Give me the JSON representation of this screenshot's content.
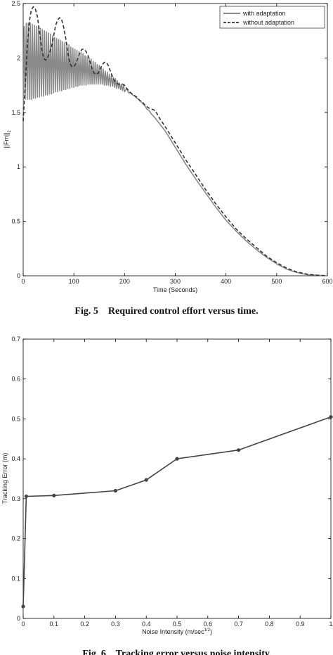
{
  "chart_data": [
    {
      "type": "line",
      "title": "",
      "caption": "Fig. 5    Required control effort versus time.",
      "xlabel": "Time (Seconds)",
      "ylabel": "||Fm||",
      "ylabel_sub": "2",
      "xlim": [
        0,
        600
      ],
      "ylim": [
        0,
        2.5
      ],
      "xticks": [
        0,
        100,
        200,
        300,
        400,
        500,
        600
      ],
      "yticks": [
        0,
        0.5,
        1,
        1.5,
        2,
        2.5
      ],
      "ytick_labels": [
        "0",
        "0.5",
        "1",
        "1.5",
        "2",
        "2.5"
      ],
      "grid": false,
      "legend_position": "top-right",
      "series": [
        {
          "name": "with adaptation",
          "style": "solid",
          "color": "#8a8a8a",
          "x": [
            0,
            2,
            4,
            6,
            8,
            10,
            12,
            14,
            16,
            18,
            20,
            22,
            24,
            26,
            28,
            30,
            32,
            34,
            36,
            38,
            40,
            42,
            44,
            46,
            48,
            50,
            52,
            54,
            56,
            58,
            60,
            62,
            64,
            66,
            68,
            70,
            72,
            74,
            76,
            78,
            80,
            82,
            84,
            86,
            88,
            90,
            92,
            94,
            96,
            98,
            100,
            102,
            104,
            106,
            108,
            110,
            112,
            114,
            116,
            118,
            120,
            122,
            124,
            126,
            128,
            130,
            132,
            134,
            136,
            138,
            140,
            142,
            144,
            146,
            148,
            150,
            152,
            154,
            156,
            158,
            160,
            162,
            164,
            166,
            168,
            170,
            172,
            174,
            176,
            178,
            180,
            182,
            184,
            186,
            188,
            190,
            192,
            194,
            196,
            198,
            200,
            204,
            208,
            212,
            216,
            220,
            224,
            228,
            232,
            236,
            240,
            244,
            248,
            252,
            256,
            260,
            270,
            280,
            300,
            320,
            340,
            360,
            380,
            400,
            420,
            440,
            460,
            480,
            500,
            520,
            540,
            560,
            580,
            600
          ],
          "values": [
            1.4,
            2.29,
            1.62,
            2.32,
            1.62,
            2.32,
            1.62,
            2.32,
            1.62,
            2.31,
            1.63,
            2.3,
            1.63,
            2.29,
            1.64,
            2.28,
            1.64,
            2.27,
            1.65,
            2.26,
            1.65,
            2.25,
            1.66,
            2.24,
            1.66,
            2.23,
            1.67,
            2.22,
            1.67,
            2.2,
            1.68,
            2.19,
            1.69,
            2.18,
            1.69,
            2.17,
            1.7,
            2.16,
            1.7,
            2.15,
            1.71,
            2.14,
            1.71,
            2.13,
            1.72,
            2.12,
            1.72,
            2.1,
            1.73,
            2.09,
            1.73,
            2.08,
            1.74,
            2.07,
            1.74,
            2.06,
            1.75,
            2.05,
            1.75,
            2.04,
            1.75,
            2.02,
            1.75,
            2.01,
            1.76,
            2.0,
            1.76,
            1.99,
            1.76,
            1.97,
            1.76,
            1.96,
            1.76,
            1.94,
            1.76,
            1.93,
            1.76,
            1.91,
            1.76,
            1.9,
            1.75,
            1.88,
            1.75,
            1.87,
            1.75,
            1.85,
            1.74,
            1.84,
            1.74,
            1.82,
            1.73,
            1.81,
            1.72,
            1.79,
            1.72,
            1.77,
            1.71,
            1.76,
            1.7,
            1.75,
            1.69,
            1.72,
            1.68,
            1.68,
            1.66,
            1.65,
            1.63,
            1.62,
            1.6,
            1.58,
            1.56,
            1.53,
            1.52,
            1.49,
            1.47,
            1.45,
            1.39,
            1.33,
            1.18,
            1.03,
            0.89,
            0.76,
            0.63,
            0.51,
            0.41,
            0.32,
            0.24,
            0.17,
            0.11,
            0.06,
            0.03,
            0.01,
            0.005,
            0.0
          ]
        },
        {
          "name": "without adaptation",
          "style": "dashed",
          "color": "#333333",
          "x": [
            0,
            4,
            8,
            12,
            16,
            20,
            24,
            28,
            32,
            36,
            40,
            44,
            48,
            52,
            56,
            60,
            64,
            68,
            72,
            76,
            80,
            84,
            88,
            92,
            96,
            100,
            104,
            108,
            112,
            116,
            120,
            124,
            128,
            132,
            136,
            140,
            144,
            148,
            152,
            156,
            160,
            164,
            168,
            172,
            176,
            180,
            184,
            188,
            192,
            196,
            200,
            206,
            212,
            218,
            224,
            230,
            236,
            242,
            248,
            254,
            260,
            270,
            280,
            300,
            320,
            340,
            360,
            380,
            400,
            420,
            440,
            460,
            480,
            500,
            520,
            540,
            560,
            580,
            600
          ],
          "values": [
            1.42,
            1.75,
            2.1,
            2.33,
            2.44,
            2.47,
            2.45,
            2.38,
            2.25,
            2.1,
            2.0,
            1.98,
            2.0,
            2.05,
            2.1,
            2.2,
            2.3,
            2.35,
            2.37,
            2.35,
            2.28,
            2.18,
            2.05,
            1.95,
            1.92,
            1.92,
            1.95,
            2.0,
            2.05,
            2.08,
            2.08,
            2.06,
            2.02,
            1.96,
            1.9,
            1.86,
            1.85,
            1.86,
            1.9,
            1.94,
            1.96,
            1.96,
            1.93,
            1.88,
            1.83,
            1.79,
            1.77,
            1.76,
            1.76,
            1.76,
            1.75,
            1.71,
            1.68,
            1.66,
            1.64,
            1.61,
            1.59,
            1.56,
            1.54,
            1.53,
            1.52,
            1.44,
            1.37,
            1.22,
            1.07,
            0.93,
            0.79,
            0.66,
            0.54,
            0.43,
            0.34,
            0.26,
            0.18,
            0.12,
            0.07,
            0.035,
            0.015,
            0.005,
            0.0
          ]
        }
      ]
    },
    {
      "type": "line",
      "title": "",
      "caption": "Fig. 6    Tracking error versus noise intensity.",
      "xlabel": "Noise Intensity (m/sec",
      "xlabel_sup": "1/2",
      "xlabel_end": ")",
      "ylabel": "Tracking Error (m)",
      "xlim": [
        0,
        1
      ],
      "ylim": [
        0,
        0.7
      ],
      "xticks": [
        0,
        0.1,
        0.2,
        0.3,
        0.4,
        0.5,
        0.6,
        0.7,
        0.8,
        0.9,
        1
      ],
      "xtick_labels": [
        "0",
        "0.1",
        "0.2",
        "0.3",
        "0.4",
        "0.5",
        "0.6",
        "0.7",
        "0.8",
        "0.9",
        "1"
      ],
      "yticks": [
        0,
        0.1,
        0.2,
        0.3,
        0.4,
        0.5,
        0.6,
        0.7
      ],
      "ytick_labels": [
        "0",
        "0.1",
        "0.2",
        "0.3",
        "0.4",
        "0.5",
        "0.6",
        "0.7"
      ],
      "grid": false,
      "markers": true,
      "series": [
        {
          "color": "#444444",
          "x": [
            0,
            0.01,
            0.1,
            0.3,
            0.4,
            0.5,
            0.7,
            1.0
          ],
          "values": [
            0.03,
            0.306,
            0.308,
            0.32,
            0.347,
            0.4,
            0.422,
            0.505
          ]
        }
      ]
    }
  ]
}
